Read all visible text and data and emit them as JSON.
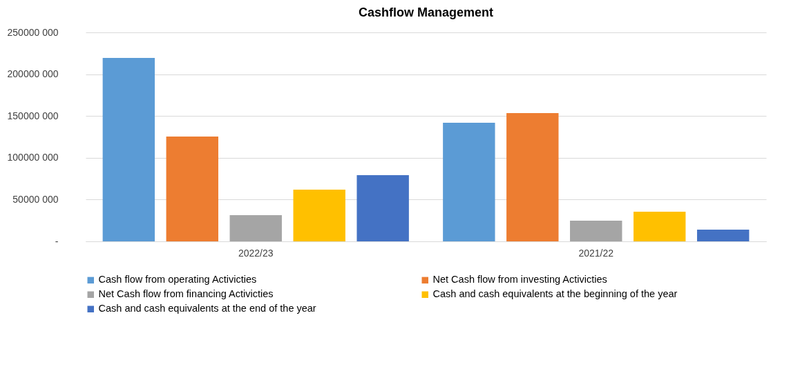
{
  "chart_data": {
    "type": "bar",
    "title": "Cashflow Management",
    "categories": [
      "2022/23",
      "2021/22"
    ],
    "series": [
      {
        "name": "Cash flow from operating Activicties",
        "color": "#5b9bd5",
        "values": [
          219500000,
          141900000
        ]
      },
      {
        "name": "Net Cash flow from investing Activicties",
        "color": "#ed7d31",
        "values": [
          125400000,
          153500000
        ]
      },
      {
        "name": "Net Cash flow from financing Activicties",
        "color": "#a5a5a5",
        "values": [
          31400000,
          24800000
        ]
      },
      {
        "name": "Cash and cash equivalents at the beginning of the year",
        "color": "#ffc000",
        "values": [
          61900000,
          35500000
        ]
      },
      {
        "name": "Cash and cash equivalents at the end of the year",
        "color": "#4472c4",
        "values": [
          79200000,
          14000000
        ]
      }
    ],
    "ylim": [
      0,
      250000000
    ],
    "yticks": [
      {
        "value": 0,
        "label": "-"
      },
      {
        "value": 50000000,
        "label": "50000 000"
      },
      {
        "value": 100000000,
        "label": "100000 000"
      },
      {
        "value": 150000000,
        "label": "150000 000"
      },
      {
        "value": 200000000,
        "label": "200000 000"
      },
      {
        "value": 250000000,
        "label": "250000 000"
      }
    ],
    "grid": "y",
    "legend": "bottom"
  }
}
